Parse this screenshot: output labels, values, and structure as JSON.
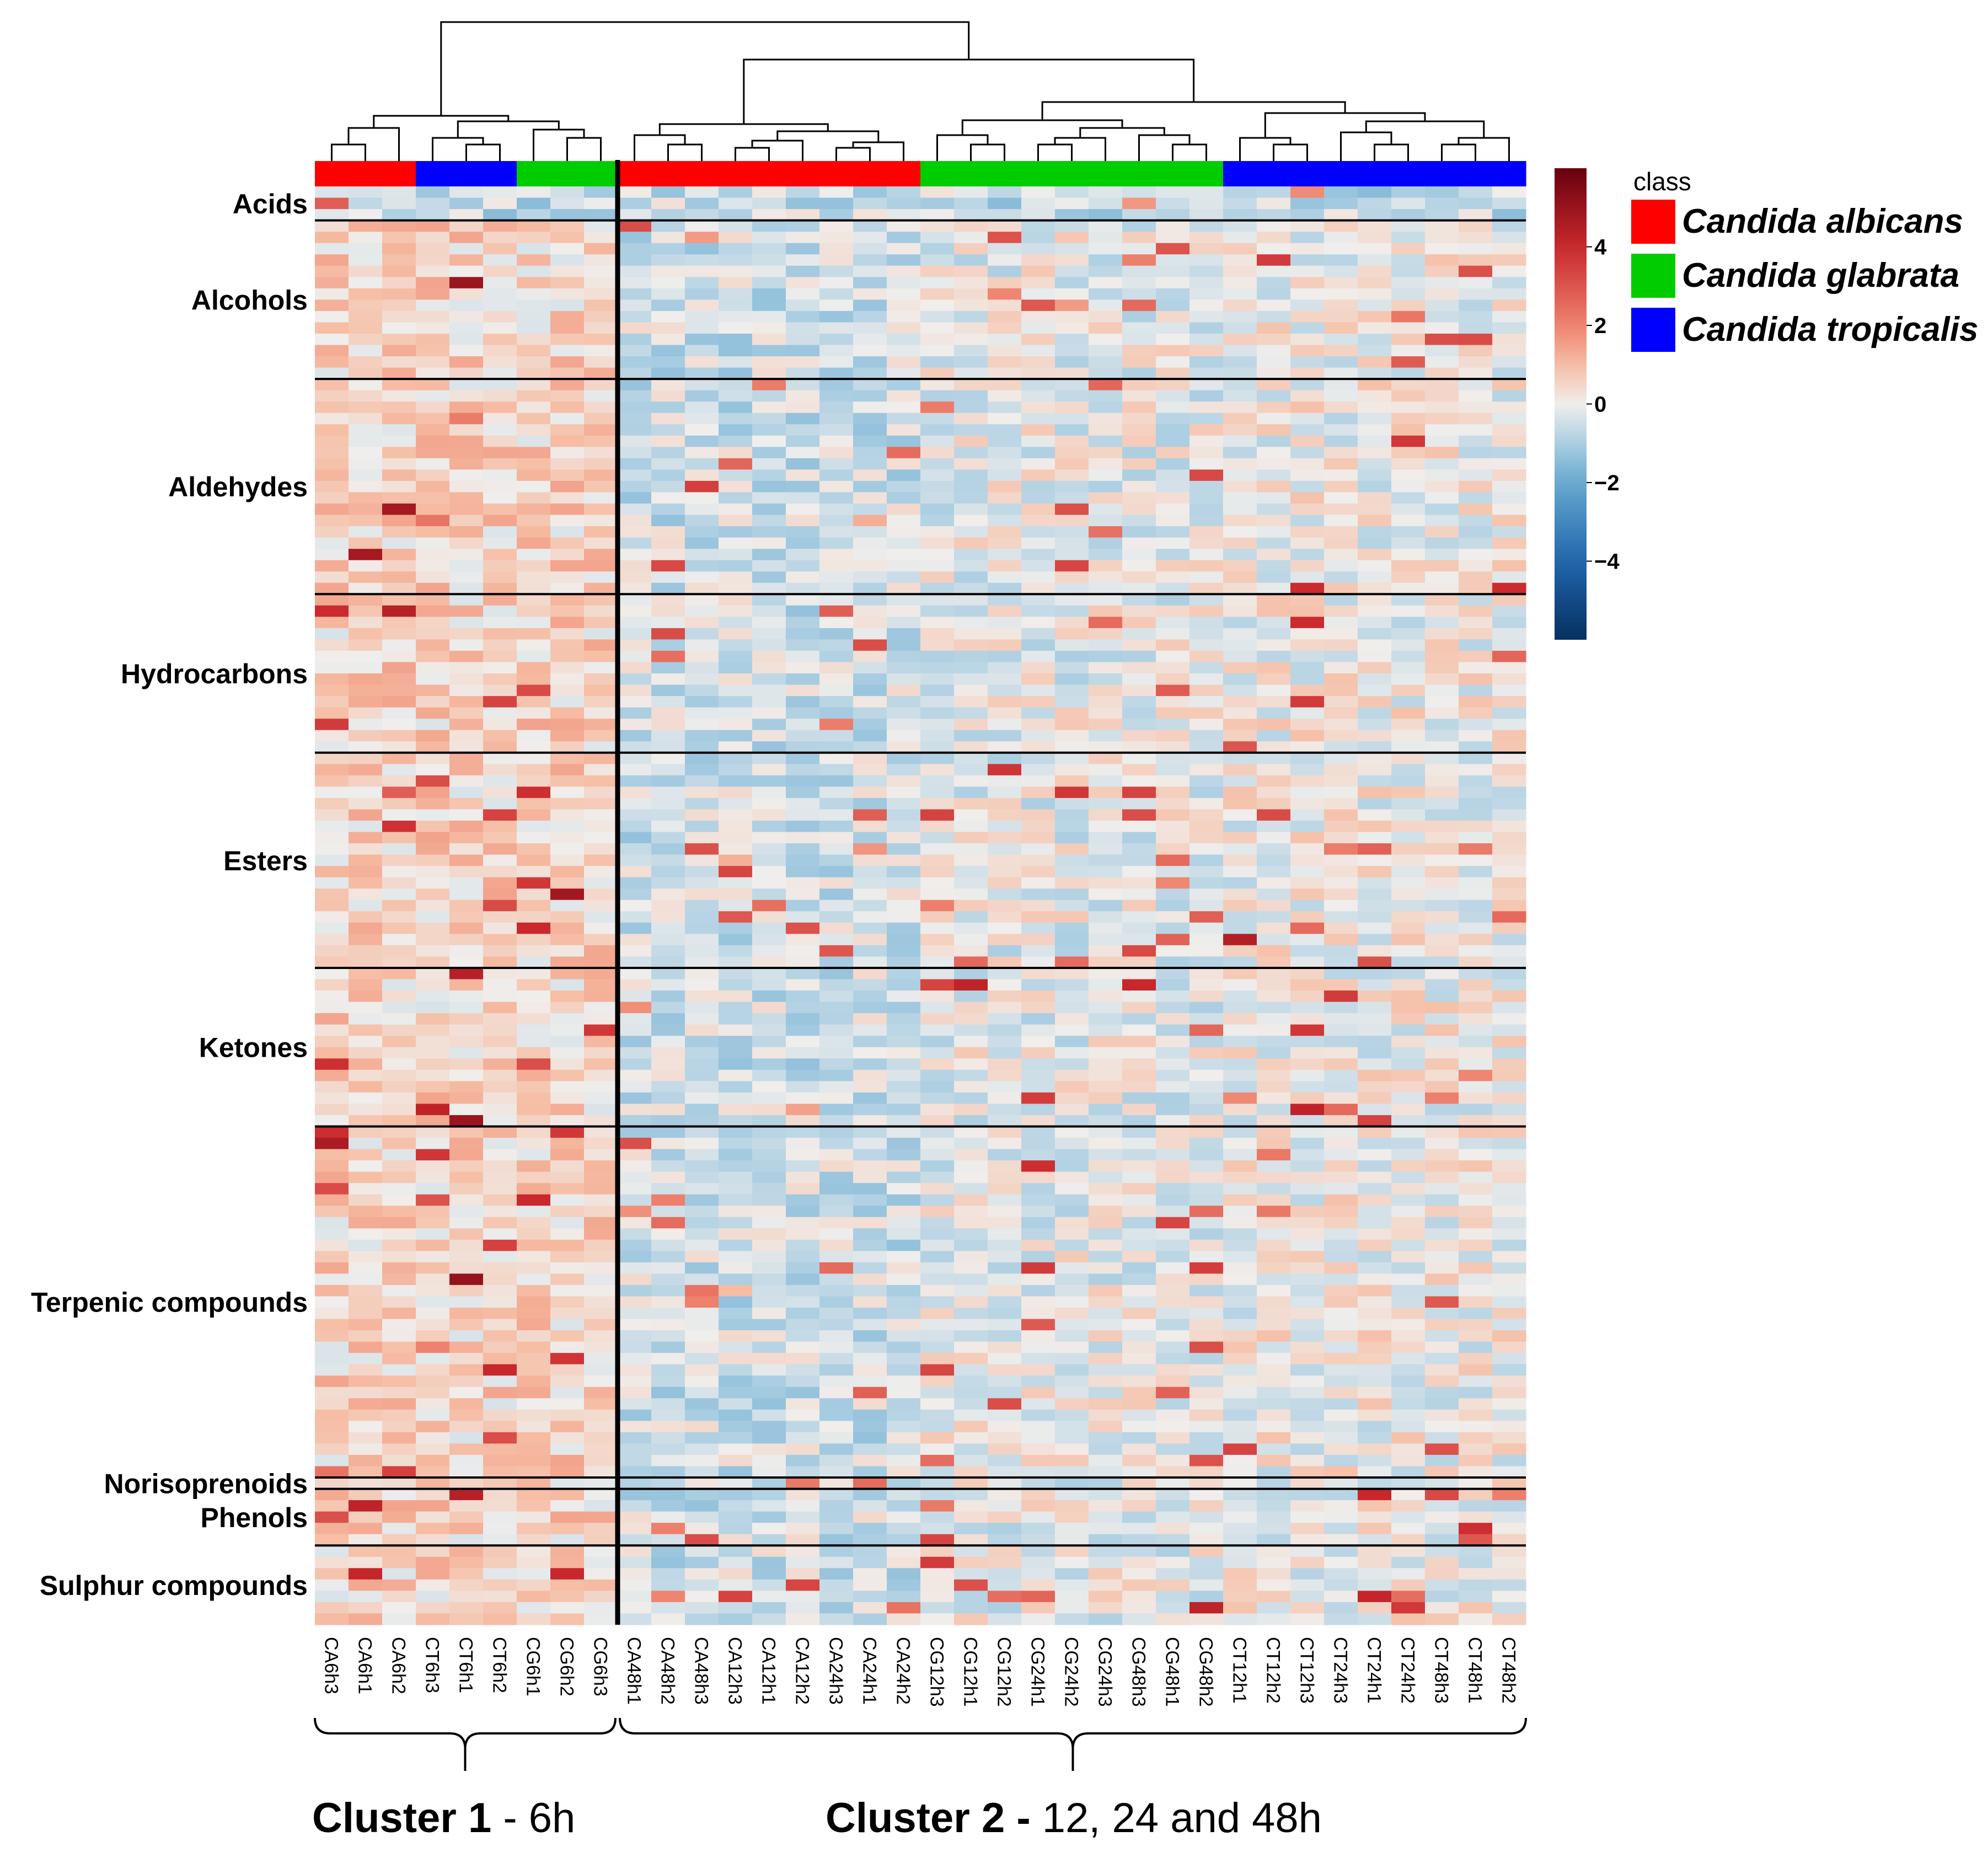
{
  "chart_data": {
    "type": "heatmap",
    "title": "",
    "legend": {
      "title": "class",
      "entries": [
        {
          "name": "Candida albicans",
          "color": "#ff0000"
        },
        {
          "name": "Candida glabrata",
          "color": "#00cc00"
        },
        {
          "name": "Candida tropicalis",
          "color": "#0000ff"
        }
      ]
    },
    "colorbar": {
      "range": [
        -6,
        6
      ],
      "ticks": [
        {
          "value": 4,
          "label": "4"
        },
        {
          "value": 2,
          "label": "2"
        },
        {
          "value": 0,
          "label": "0"
        },
        {
          "value": -2,
          "label": "−2"
        },
        {
          "value": -4,
          "label": "−4"
        }
      ]
    },
    "columns": [
      {
        "label": "CA6h3",
        "class": "Candida albicans",
        "cluster": 1
      },
      {
        "label": "CA6h1",
        "class": "Candida albicans",
        "cluster": 1
      },
      {
        "label": "CA6h2",
        "class": "Candida albicans",
        "cluster": 1
      },
      {
        "label": "CT6h3",
        "class": "Candida tropicalis",
        "cluster": 1
      },
      {
        "label": "CT6h1",
        "class": "Candida tropicalis",
        "cluster": 1
      },
      {
        "label": "CT6h2",
        "class": "Candida tropicalis",
        "cluster": 1
      },
      {
        "label": "CG6h1",
        "class": "Candida glabrata",
        "cluster": 1
      },
      {
        "label": "CG6h2",
        "class": "Candida glabrata",
        "cluster": 1
      },
      {
        "label": "CG6h3",
        "class": "Candida glabrata",
        "cluster": 1
      },
      {
        "label": "CA48h1",
        "class": "Candida albicans",
        "cluster": 2
      },
      {
        "label": "CA48h2",
        "class": "Candida albicans",
        "cluster": 2
      },
      {
        "label": "CA48h3",
        "class": "Candida albicans",
        "cluster": 2
      },
      {
        "label": "CA12h3",
        "class": "Candida albicans",
        "cluster": 2
      },
      {
        "label": "CA12h1",
        "class": "Candida albicans",
        "cluster": 2
      },
      {
        "label": "CA12h2",
        "class": "Candida albicans",
        "cluster": 2
      },
      {
        "label": "CA24h3",
        "class": "Candida albicans",
        "cluster": 2
      },
      {
        "label": "CA24h1",
        "class": "Candida albicans",
        "cluster": 2
      },
      {
        "label": "CA24h2",
        "class": "Candida albicans",
        "cluster": 2
      },
      {
        "label": "CG12h3",
        "class": "Candida glabrata",
        "cluster": 2
      },
      {
        "label": "CG12h1",
        "class": "Candida glabrata",
        "cluster": 2
      },
      {
        "label": "CG12h2",
        "class": "Candida glabrata",
        "cluster": 2
      },
      {
        "label": "CG24h1",
        "class": "Candida glabrata",
        "cluster": 2
      },
      {
        "label": "CG24h2",
        "class": "Candida glabrata",
        "cluster": 2
      },
      {
        "label": "CG24h3",
        "class": "Candida glabrata",
        "cluster": 2
      },
      {
        "label": "CG48h3",
        "class": "Candida glabrata",
        "cluster": 2
      },
      {
        "label": "CG48h1",
        "class": "Candida glabrata",
        "cluster": 2
      },
      {
        "label": "CG48h2",
        "class": "Candida glabrata",
        "cluster": 2
      },
      {
        "label": "CT12h1",
        "class": "Candida tropicalis",
        "cluster": 2
      },
      {
        "label": "CT12h2",
        "class": "Candida tropicalis",
        "cluster": 2
      },
      {
        "label": "CT12h3",
        "class": "Candida tropicalis",
        "cluster": 2
      },
      {
        "label": "CT24h3",
        "class": "Candida tropicalis",
        "cluster": 2
      },
      {
        "label": "CT24h1",
        "class": "Candida tropicalis",
        "cluster": 2
      },
      {
        "label": "CT24h2",
        "class": "Candida tropicalis",
        "cluster": 2
      },
      {
        "label": "CT48h3",
        "class": "Candida tropicalis",
        "cluster": 2
      },
      {
        "label": "CT48h1",
        "class": "Candida tropicalis",
        "cluster": 2
      },
      {
        "label": "CT48h2",
        "class": "Candida tropicalis",
        "cluster": 2
      }
    ],
    "row_groups": [
      {
        "name": "Acids",
        "rows": 3
      },
      {
        "name": "Alcohols",
        "rows": 14
      },
      {
        "name": "Aldehydes",
        "rows": 19
      },
      {
        "name": "Hydrocarbons",
        "rows": 14
      },
      {
        "name": "Esters",
        "rows": 19
      },
      {
        "name": "Ketones",
        "rows": 14
      },
      {
        "name": "Terpenic compounds",
        "rows": 31
      },
      {
        "name": "Norisoprenoids",
        "rows": 1
      },
      {
        "name": "Phenols",
        "rows": 5
      },
      {
        "name": "Sulphur compounds",
        "rows": 7
      }
    ],
    "clusters": [
      {
        "bold": "Cluster 1",
        "rest": " - 6h"
      },
      {
        "bold": "Cluster 2 -",
        "rest": " 12, 24 and 48h"
      }
    ]
  }
}
